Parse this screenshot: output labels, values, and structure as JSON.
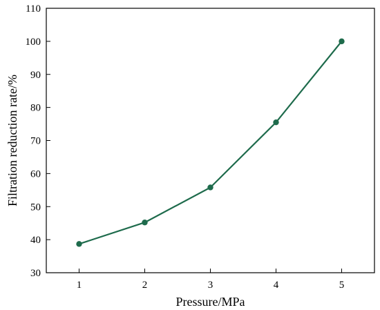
{
  "chart_data": {
    "type": "line",
    "xlabel": "Pressure/MPa",
    "ylabel": "Filtration reduction rate/%",
    "x": [
      1,
      2,
      3,
      4,
      5
    ],
    "series": [
      {
        "values": [
          38.7,
          45.2,
          55.8,
          75.5,
          100.0
        ]
      }
    ],
    "xlim": [
      0.5,
      5.5
    ],
    "ylim": [
      30,
      110
    ],
    "xticks": [
      1,
      2,
      3,
      4,
      5
    ],
    "yticks": [
      30,
      40,
      50,
      60,
      70,
      80,
      90,
      100,
      110
    ],
    "grid": false,
    "legend": "none",
    "marker": "circle",
    "colors": {
      "series": "#1e6b4c",
      "axis": "#000000",
      "background": "#ffffff"
    }
  }
}
